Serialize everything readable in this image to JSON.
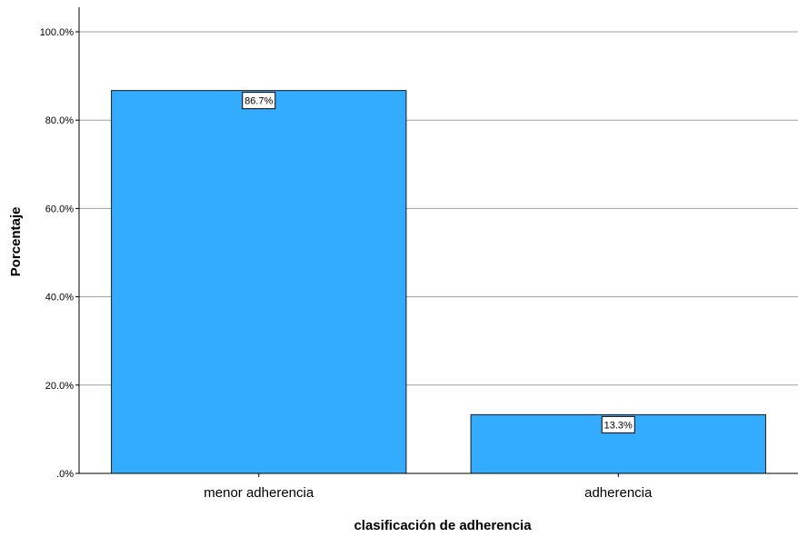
{
  "chart_data": {
    "type": "bar",
    "categories": [
      "menor adherencia",
      "adherencia"
    ],
    "values": [
      86.7,
      13.3
    ],
    "data_labels": [
      "86.7%",
      "13.3%"
    ],
    "xlabel": "clasificación de adherencia",
    "ylabel": "Porcentaje",
    "ylim": [
      0,
      100
    ],
    "yticks": [
      0,
      20,
      40,
      60,
      80,
      100
    ],
    "ytick_labels": [
      ".0%",
      "20.0%",
      "40.0%",
      "60.0%",
      "80.0%",
      "100.0%"
    ],
    "grid": true,
    "legend": "none",
    "colors": {
      "bar": "#33acff",
      "bar_stroke": "#1a1a1a",
      "grid": "#a0a0a0",
      "axis": "#000000"
    }
  }
}
